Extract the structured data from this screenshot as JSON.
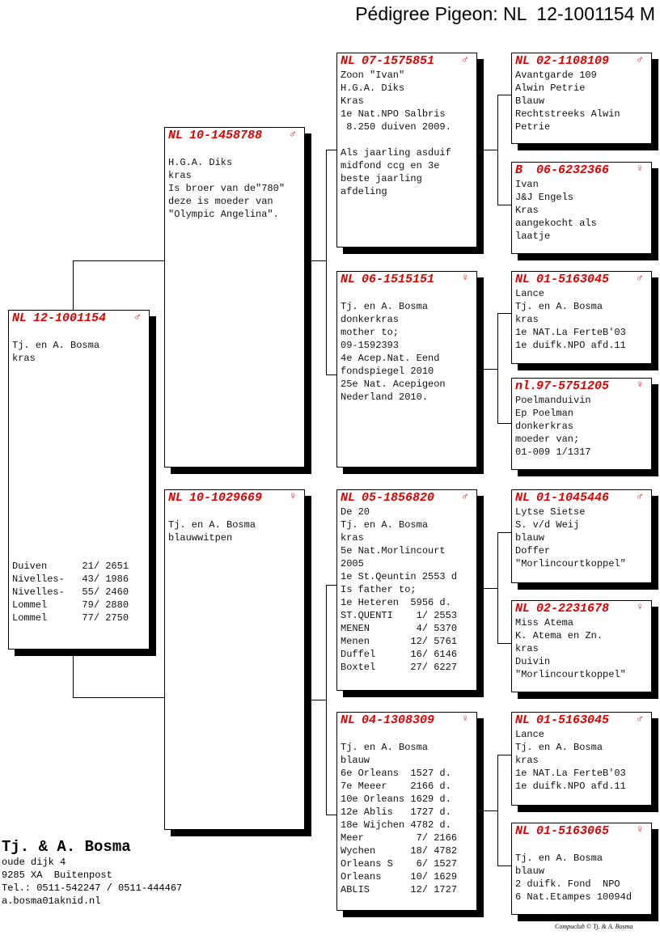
{
  "title": "Pédigree Pigeon: NL  12-1001154 M",
  "sex_symbols": {
    "male": "♂",
    "female": "♀"
  },
  "colors": {
    "header": "#e00000",
    "text": "#111111",
    "shadow": "#000000"
  },
  "pigeons": [
    {
      "country": "NL",
      "ring": "12-1001154",
      "sex": "male",
      "lines": [
        "",
        "Tj. en A. Bosma",
        "kras"
      ],
      "results": [
        "Duiven      21/ 2651",
        "Nivelles-   43/ 1986",
        "Nivelles-   55/ 2460",
        "Lommel      79/ 2880",
        "Lommel      77/ 2750"
      ]
    },
    {
      "country": "NL",
      "ring": "10-1458788",
      "sex": "male",
      "lines": [
        "",
        "H.G.A. Diks",
        "kras",
        "Is broer van de\"780\"",
        "deze is moeder van",
        "\"Olympic Angelina\"."
      ]
    },
    {
      "country": "NL",
      "ring": "10-1029669",
      "sex": "female",
      "lines": [
        "",
        "Tj. en A. Bosma",
        "blauwwitpen"
      ]
    },
    {
      "country": "NL",
      "ring": "07-1575851",
      "sex": "male",
      "lines": [
        "Zoon \"Ivan\"",
        "H.G.A. Diks",
        "Kras",
        "1e Nat.NPO Salbris",
        " 8.250 duiven 2009.",
        "",
        "Als jaarling asduif",
        "midfond ccg en 3e",
        "beste jaarling",
        "afdeling"
      ]
    },
    {
      "country": "NL",
      "ring": "06-1515151",
      "sex": "female",
      "lines": [
        "",
        "Tj. en A. Bosma",
        "donkerkras",
        "mother to;",
        "09-1592393",
        "4e Acep.Nat. Eend",
        "fondspiegel 2010",
        "25e Nat. Acepigeon",
        "Nederland 2010."
      ]
    },
    {
      "country": "NL",
      "ring": "05-1856820",
      "sex": "male",
      "lines": [
        "De 20",
        "Tj. en A. Bosma",
        "kras",
        "5e Nat.Morlincourt",
        "2005",
        "1e St.Qeuntin 2553 d",
        "Is father to;",
        "1e Heteren  5956 d.",
        "ST.QUENTI    1/ 2553",
        "MENEN        4/ 5370",
        "Menen       12/ 5761",
        "Duffel      16/ 6146",
        "Boxtel      27/ 6227"
      ]
    },
    {
      "country": "NL",
      "ring": "04-1308309",
      "sex": "female",
      "lines": [
        "",
        "Tj. en A. Bosma",
        "blauw",
        "6e Orleans  1527 d.",
        "7e Meeer    2166 d.",
        "10e Orleans 1629 d.",
        "12e Ablis   1727 d.",
        "18e Wijchen 4782 d.",
        "Meer         7/ 2166",
        "Wychen      18/ 4782",
        "Orleans S    6/ 1527",
        "Orleans     10/ 1629",
        "ABLIS       12/ 1727"
      ]
    },
    {
      "country": "NL",
      "ring": "02-1108109",
      "sex": "male",
      "lines": [
        "Avantgarde 109",
        "Alwin Petrie",
        "Blauw",
        "Rechtstreeks Alwin",
        "Petrie"
      ]
    },
    {
      "country": "B",
      "ring": "06-6232366",
      "sex": "female",
      "lines": [
        "Ivan",
        "J&J Engels",
        "Kras",
        "aangekocht als",
        "laatje"
      ]
    },
    {
      "country": "NL",
      "ring": "01-5163045",
      "sex": "male",
      "lines": [
        "Lance",
        "Tj. en A. Bosma",
        "kras",
        "1e NAT.La FerteB'03",
        "1e duifk.NPO afd.11"
      ]
    },
    {
      "country": "nl.",
      "ring": "97-5751205",
      "sex": "female",
      "lines": [
        "Poelmanduivin",
        "Ep Poelman",
        "donkerkras",
        "moeder van;",
        "01-009 1/1317"
      ]
    },
    {
      "country": "NL",
      "ring": "01-1045446",
      "sex": "male",
      "lines": [
        "Lytse Sietse",
        "S. v/d Weij",
        "blauw",
        "Doffer",
        "\"Morlincourtkoppel\""
      ]
    },
    {
      "country": "NL",
      "ring": "02-2231678",
      "sex": "female",
      "lines": [
        "Miss Atema",
        "K. Atema en Zn.",
        "kras",
        "Duivin",
        "\"Morlincourtkoppel\""
      ]
    },
    {
      "country": "NL",
      "ring": "01-5163045",
      "sex": "male",
      "lines": [
        "Lance",
        "Tj. en A. Bosma",
        "kras",
        "1e NAT.La FerteB'03",
        "1e duifk.NPO afd.11"
      ]
    },
    {
      "country": "NL",
      "ring": "01-5163065",
      "sex": "female",
      "lines": [
        "",
        "Tj. en A. Bosma",
        "blauw",
        "2 duifk. Fond  NPO",
        "6 Nat.Etampes 10094d"
      ]
    }
  ],
  "breeder": {
    "name": "Tj. & A. Bosma",
    "address": "oude dijk 4",
    "city": "9285 XA  Buitenpost",
    "phone": "Tel.: 0511-542247 / 0511-444467",
    "email": "a.bosma01aknid.nl"
  },
  "footer": "Compuclub © Tj. & A. Bosma"
}
